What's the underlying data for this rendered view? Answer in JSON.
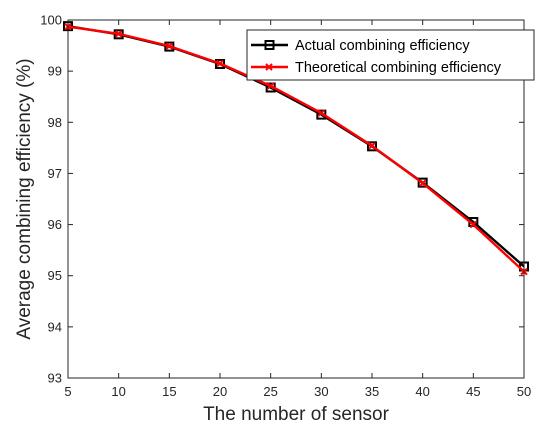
{
  "chart_data": {
    "type": "line",
    "xlabel": "The number of sensor",
    "ylabel": "Average combining efficiency (%)",
    "xlim": [
      5,
      50
    ],
    "ylim": [
      93,
      100
    ],
    "xticks": [
      "5",
      "10",
      "15",
      "20",
      "25",
      "30",
      "35",
      "40",
      "45",
      "50"
    ],
    "yticks": [
      "93",
      "94",
      "95",
      "96",
      "97",
      "98",
      "99",
      "100"
    ],
    "grid": false,
    "legend_position": "top-right",
    "x": [
      5,
      10,
      15,
      20,
      25,
      30,
      35,
      40,
      45,
      50
    ],
    "series": [
      {
        "name": "Actual combining efficiency",
        "color": "#000000",
        "marker": "square",
        "values": [
          99.88,
          99.72,
          99.48,
          99.14,
          98.68,
          98.15,
          97.53,
          96.82,
          96.05,
          95.18
        ]
      },
      {
        "name": "Theoretical combining efficiency",
        "color": "#ff0000",
        "marker": "x",
        "values": [
          99.87,
          99.73,
          99.49,
          99.15,
          98.71,
          98.18,
          97.54,
          96.81,
          96.0,
          95.08
        ]
      }
    ]
  }
}
